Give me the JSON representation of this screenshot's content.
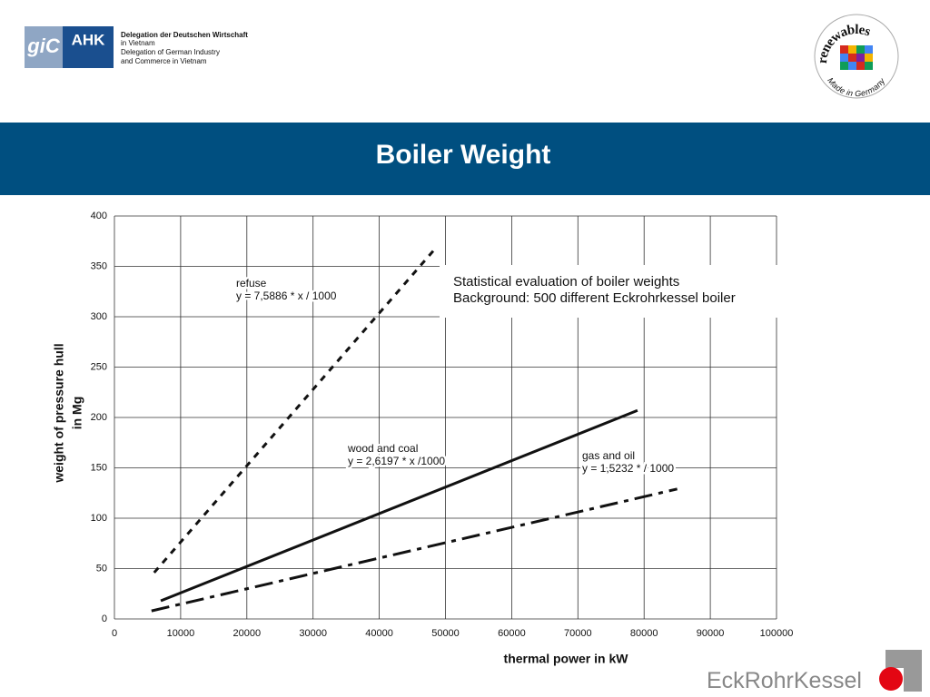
{
  "slide": {
    "logo_mark": "giC",
    "logo_name": "AHK",
    "logo_lines": [
      "Delegation der Deutschen Wirtschaft",
      "in Vietnam",
      "Delegation of German Industry",
      "and Commerce in Vietnam"
    ],
    "badge_top": "renewables",
    "badge_bottom": "Made in Germany",
    "footer": [
      "Eck",
      "Rohr",
      "Kessel"
    ]
  },
  "chart_data": {
    "type": "line",
    "title": "Boiler Weight",
    "x_label": "thermal power in kW",
    "y_label": [
      "weight of pressure hull",
      "in Mg"
    ],
    "annotations": [
      "Statistical evaluation of boiler weights",
      "Background: 500 different Eckrohrkessel boiler"
    ],
    "series": [
      {
        "name": "refuse",
        "equation": "y = 7,5886 * x / 1000",
        "color": "#111111",
        "linestyle": "dotted",
        "x": [
          6000,
          48500
        ],
        "values": [
          46,
          368
        ]
      },
      {
        "name": "wood and coal",
        "equation": "y = 2,6197 * x /1000",
        "color": "#111111",
        "linestyle": "solid",
        "x": [
          7000,
          79000
        ],
        "values": [
          18,
          207
        ]
      },
      {
        "name": "gas and oil",
        "equation": "y = 1,5232 * / 1000",
        "color": "#111111",
        "linestyle": "dashdot",
        "x": [
          5600,
          85000
        ],
        "values": [
          8,
          129
        ]
      }
    ],
    "xlim": [
      0,
      100000
    ],
    "xticks": [
      0,
      10000,
      20000,
      30000,
      40000,
      50000,
      60000,
      70000,
      80000,
      90000,
      100000
    ],
    "ylim": [
      0,
      400
    ],
    "yticks": [
      0,
      50,
      100,
      150,
      200,
      250,
      300,
      350,
      400
    ],
    "grid": true
  }
}
